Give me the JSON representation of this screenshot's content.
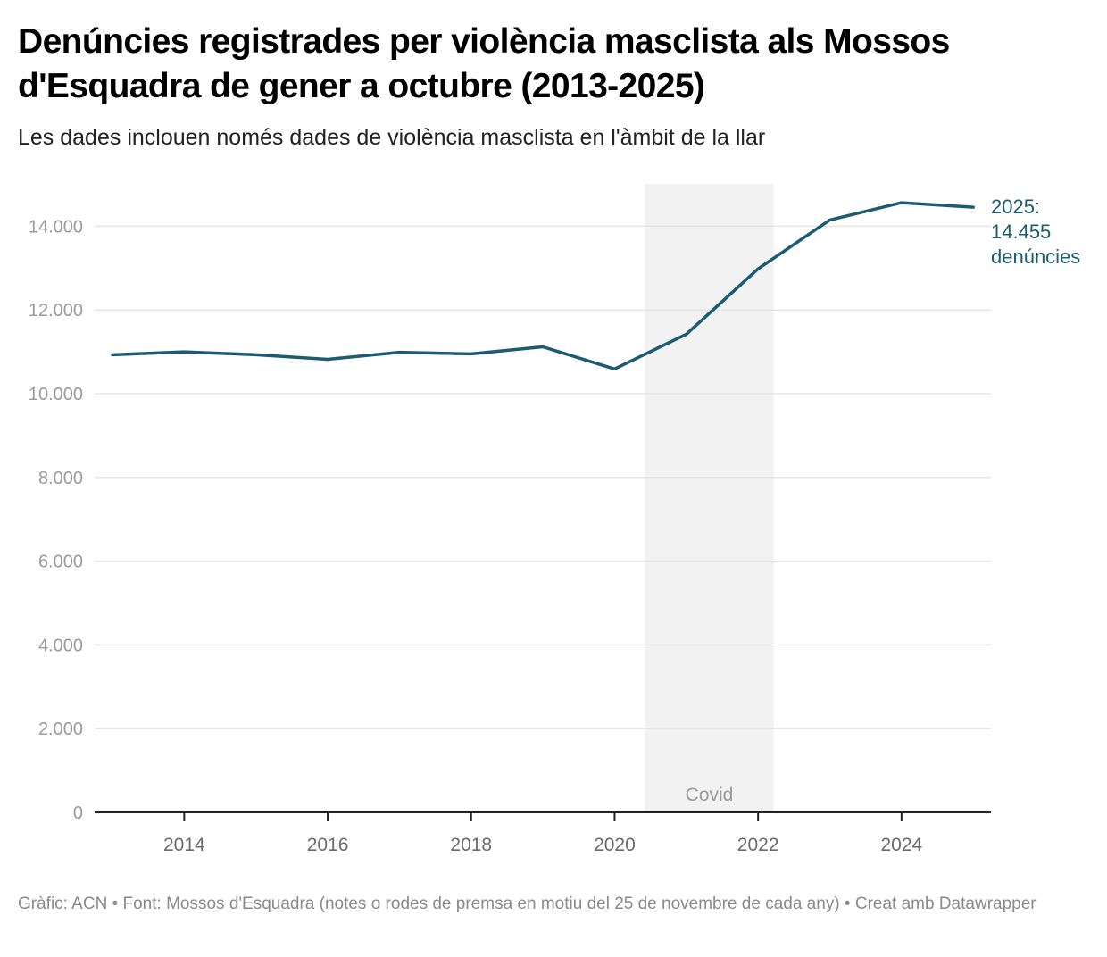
{
  "header": {
    "title": "Denúncies registrades per violència masclista als Mossos d'Esquadra de gener a octubre (2013-2025)",
    "subtitle": "Les dades inclouen només dades de violència masclista en l'àmbit de la llar"
  },
  "footer": {
    "text": "Gràfic: ACN • Font: Mossos d'Esquadra (notes o rodes de premsa en motiu del 25 de novembre de cada any) • Creat amb Datawrapper"
  },
  "colors": {
    "line": "#1c5c72",
    "band": "#f2f2f2",
    "grid": "#e5e5e5",
    "axis": "#222222"
  },
  "chart_data": {
    "type": "line",
    "title": "Denúncies registrades per violència masclista als Mossos d'Esquadra de gener a octubre (2013-2025)",
    "xlabel": "",
    "ylabel": "",
    "x": [
      2013,
      2014,
      2015,
      2016,
      2017,
      2018,
      2019,
      2020,
      2021,
      2022,
      2023,
      2024,
      2025
    ],
    "series": [
      {
        "name": "Denúncies",
        "values": [
          10930,
          11000,
          10930,
          10820,
          10990,
          10950,
          11120,
          10590,
          11420,
          12980,
          14150,
          14560,
          14455
        ]
      }
    ],
    "xlim": [
      2013,
      2025.3
    ],
    "ylim": [
      0,
      15000
    ],
    "yticks": [
      0,
      2000,
      4000,
      6000,
      8000,
      10000,
      12000,
      14000
    ],
    "ytick_labels": [
      "0",
      "2.000",
      "4.000",
      "6.000",
      "8.000",
      "10.000",
      "12.000",
      "14.000"
    ],
    "xticks": [
      2014,
      2016,
      2018,
      2020,
      2022,
      2024
    ],
    "xtick_labels": [
      "2014",
      "2016",
      "2018",
      "2020",
      "2022",
      "2024"
    ],
    "grid": true,
    "shaded_range": {
      "label": "Covid",
      "from": 2020.42,
      "to": 2022.22
    },
    "end_annotation": {
      "lines": [
        "2025:",
        "14.455",
        "denúncies"
      ]
    }
  }
}
